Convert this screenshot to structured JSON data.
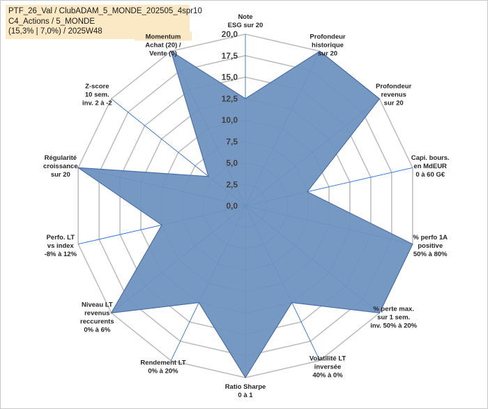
{
  "title": {
    "line1": "PTF_26_Val / ClubADAM_5_MONDE_202505_4spr10",
    "line2": "C4_Actions / 5_MONDE",
    "line3": "(15,3% | 7,0%) / 2025W48"
  },
  "chart_data": {
    "type": "radar",
    "rmin": 0,
    "rmax": 20,
    "ticks": [
      "0,0",
      "2,5",
      "5,0",
      "7,5",
      "10,0",
      "12,5",
      "15,0",
      "17,5",
      "20,0"
    ],
    "tick_values": [
      0,
      2.5,
      5,
      7.5,
      10,
      12.5,
      15,
      17.5,
      20
    ],
    "gridlines": true,
    "colors": {
      "fill": "#6f93c0",
      "edge": "#4a6fa8",
      "grid": "#bfbfbf",
      "axis": "#2e6fd6",
      "highlight_bg": "#fbe8c4"
    },
    "categories": [
      {
        "lines": [
          "Note",
          "ESG sur 20"
        ]
      },
      {
        "lines": [
          "Profondeur",
          "historique",
          "sur 20"
        ]
      },
      {
        "lines": [
          "Profondeur",
          "revenus",
          "sur 20"
        ]
      },
      {
        "lines": [
          "Capi. bours.",
          "en MdEUR",
          "0 à 60 G€"
        ]
      },
      {
        "lines": [
          "% perfo 1A",
          "positive",
          "50% à 80%"
        ]
      },
      {
        "lines": [
          "% perte max.",
          "sur 1 sem.",
          "inv. 50% à 20%"
        ]
      },
      {
        "lines": [
          "Volatilité LT",
          "inversée",
          "40% à 0%"
        ]
      },
      {
        "lines": [
          "Ratio Sharpe",
          "0 à 1"
        ]
      },
      {
        "lines": [
          "Rendement LT",
          "0% à 20%"
        ]
      },
      {
        "lines": [
          "Niveau LT",
          "revenus",
          "reccurents",
          "0% à 6%"
        ]
      },
      {
        "lines": [
          "Perfo. LT",
          "vs index",
          "-8% à 12%"
        ]
      },
      {
        "lines": [
          "Régularité",
          "croissance",
          "sur 20"
        ]
      },
      {
        "lines": [
          "Z-score",
          "10 sem.",
          "inv. 2 à -2"
        ]
      },
      {
        "lines": [
          "Momentum",
          "Achat (20) /",
          "Vente (0)"
        ],
        "highlight": true
      }
    ],
    "series": [
      {
        "name": "PTF_26_Val",
        "values": [
          12.5,
          20,
          20,
          7.4,
          20,
          20,
          12.5,
          20,
          12.5,
          20,
          10,
          20,
          5.5,
          20
        ]
      }
    ]
  }
}
